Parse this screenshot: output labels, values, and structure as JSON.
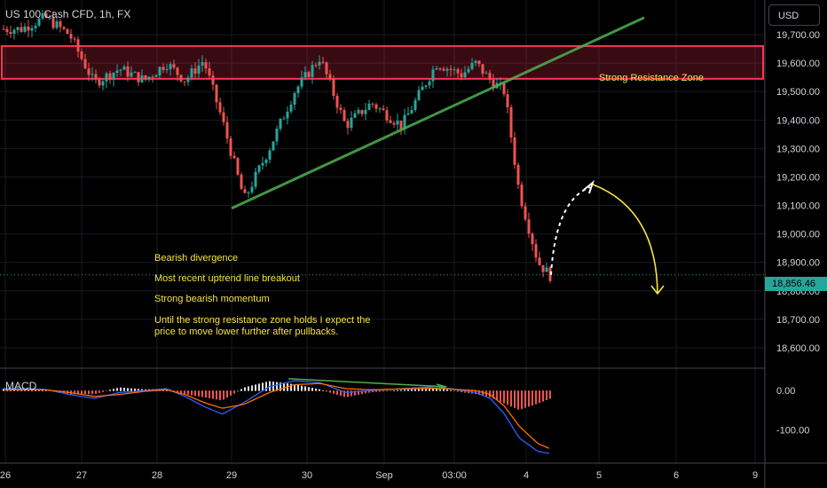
{
  "header": {
    "title": "US 100 Cash CFD, 1h, FX",
    "currency": "USD"
  },
  "annotations": {
    "zone_label": "Strong Resistance Zone",
    "line1": "Bearish divergence",
    "line2": "Most recent uptrend line breakout",
    "line3": "Strong bearish momentum",
    "note_line1": "Until the strong resistance zone holds I expect the",
    "note_line2": "price to move lower further after pullbacks."
  },
  "colors": {
    "bull": "#26a69a",
    "bear": "#ef5350",
    "zone": "#ff3355",
    "trendline": "#4caf50",
    "annotation": "#f5e342",
    "macd_line": "#2962ff",
    "signal_line": "#ff6d00"
  },
  "chart_data": [
    {
      "type": "candlestick",
      "ylim": [
        18550,
        19800
      ],
      "y_ticks": [
        "19,700.00",
        "19,600.00",
        "19,500.00",
        "19,400.00",
        "19,300.00",
        "19,200.00",
        "19,100.00",
        "19,000.00",
        "18,900.00",
        "18,800.00",
        "18,700.00",
        "18,600.00"
      ],
      "y_tick_values": [
        19700,
        19600,
        19500,
        19400,
        19300,
        19200,
        19100,
        19000,
        18900,
        18800,
        18700,
        18600
      ],
      "x_ticks": [
        "26",
        "27",
        "28",
        "29",
        "30",
        "Sep",
        "03:00",
        "4",
        "5",
        "6",
        "9"
      ],
      "last_price": "18,856.46",
      "resistance_zone": [
        19545,
        19660
      ],
      "uptrend_line": {
        "from": {
          "date": "Aug 29",
          "price": 19090
        },
        "to": {
          "date": "Sep 3",
          "price": 19560
        }
      },
      "close_path": [
        {
          "date": "Aug 26",
          "price": 19720
        },
        {
          "date": "Aug 26",
          "price": 19760
        },
        {
          "date": "Aug 26",
          "price": 19700
        },
        {
          "date": "Aug 27",
          "price": 19530
        },
        {
          "date": "Aug 27",
          "price": 19580
        },
        {
          "date": "Aug 27",
          "price": 19540
        },
        {
          "date": "Aug 28",
          "price": 19600
        },
        {
          "date": "Aug 28",
          "price": 19540
        },
        {
          "date": "Aug 28",
          "price": 19610
        },
        {
          "date": "Aug 28",
          "price": 19400
        },
        {
          "date": "Aug 29",
          "price": 19120
        },
        {
          "date": "Aug 29",
          "price": 19300
        },
        {
          "date": "Aug 29",
          "price": 19500
        },
        {
          "date": "Aug 30",
          "price": 19620
        },
        {
          "date": "Aug 30",
          "price": 19380
        },
        {
          "date": "Aug 30",
          "price": 19460
        },
        {
          "date": "Sep",
          "price": 19380
        },
        {
          "date": "Sep",
          "price": 19600
        },
        {
          "date": "Sep 3",
          "price": 19560
        },
        {
          "date": "Sep 3",
          "price": 19600
        },
        {
          "date": "Sep 3",
          "price": 19540
        },
        {
          "date": "Sep 3",
          "price": 19500
        },
        {
          "date": "Sep 3",
          "price": 19150
        },
        {
          "date": "Sep 4",
          "price": 18900
        },
        {
          "date": "Sep 4",
          "price": 18810
        },
        {
          "date": "Sep 4",
          "price": 18856
        }
      ],
      "projection": {
        "pullback_to": 19180,
        "target": 18790
      }
    },
    {
      "type": "line",
      "title": "MACD",
      "ylim": [
        -180,
        50
      ],
      "y_ticks": [
        "0.00",
        "-100.00"
      ],
      "y_tick_values": [
        0,
        -100
      ],
      "series": [
        {
          "name": "",
          "role": "macd",
          "values": [
            5,
            3,
            -10,
            -20,
            -5,
            0,
            5,
            -15,
            -40,
            -60,
            -30,
            10,
            25,
            20,
            -5,
            0,
            5,
            10,
            0,
            -5,
            -20,
            -60,
            -120,
            -155,
            -165,
            -160
          ]
        },
        {
          "name": "",
          "role": "signal",
          "values": [
            2,
            2,
            -5,
            -15,
            -10,
            -2,
            2,
            -10,
            -30,
            -45,
            -35,
            -5,
            15,
            18,
            5,
            2,
            4,
            6,
            2,
            0,
            -10,
            -40,
            -90,
            -135,
            -160,
            -162
          ]
        }
      ]
    }
  ]
}
